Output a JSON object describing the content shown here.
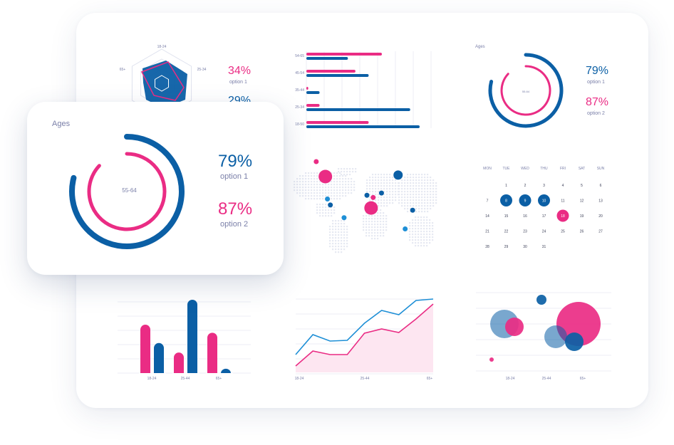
{
  "colors": {
    "blue": "#0b5fa5",
    "pink": "#ea2c84",
    "lightblue": "#1e8fd6",
    "muted": "#7a7fa8",
    "grid": "#eceef5"
  },
  "overlay_card": {
    "title": "Ages",
    "center_label": "55-64",
    "pct1": "79%",
    "opt1": "option 1",
    "pct2": "87%",
    "opt2": "option 2"
  },
  "radar_card": {
    "labels": [
      "18-24",
      "25-34",
      "65+"
    ],
    "pct1": "34%",
    "opt1": "option 1",
    "pct2": "29%"
  },
  "chart_data": [
    {
      "type": "bar",
      "orientation": "horizontal",
      "categories": [
        "54-65",
        "45-54",
        "35-44",
        "25-34",
        "18-50"
      ],
      "series": [
        {
          "values": [
            40,
            26,
            1,
            7,
            33
          ]
        },
        {
          "values": [
            22,
            33,
            7,
            55,
            60
          ]
        }
      ]
    },
    {
      "type": "pie",
      "subtype": "radial",
      "title": "Ages",
      "center_label": "55-64",
      "series": [
        {
          "name": "option 1",
          "value": 79
        },
        {
          "name": "option 2",
          "value": 87
        }
      ]
    },
    {
      "type": "scatter",
      "subtype": "map",
      "points": [
        {
          "lon": -100,
          "lat": 40,
          "size": 3,
          "color": "pink"
        },
        {
          "lon": -95,
          "lat": 10,
          "size": 1,
          "color": "lightblue"
        },
        {
          "lon": -88,
          "lat": 2,
          "size": 1,
          "color": "blue"
        },
        {
          "lon": -122,
          "lat": 60,
          "size": 1,
          "color": "pink"
        },
        {
          "lon": -55,
          "lat": -15,
          "size": 1,
          "color": "lightblue"
        },
        {
          "lon": 0,
          "lat": 15,
          "size": 1,
          "color": "blue"
        },
        {
          "lon": 10,
          "lat": -2,
          "size": 3,
          "color": "pink"
        },
        {
          "lon": 15,
          "lat": 12,
          "size": 1,
          "color": "pink"
        },
        {
          "lon": 35,
          "lat": 18,
          "size": 1,
          "color": "blue"
        },
        {
          "lon": 75,
          "lat": 42,
          "size": 2,
          "color": "blue"
        },
        {
          "lon": 110,
          "lat": -5,
          "size": 1,
          "color": "blue"
        },
        {
          "lon": 92,
          "lat": -30,
          "size": 1,
          "color": "lightblue"
        }
      ]
    },
    {
      "type": "table",
      "subtype": "calendar",
      "columns": [
        "MON",
        "TUE",
        "WED",
        "THU",
        "FRI",
        "SAT",
        "SUN"
      ],
      "first_weekday_index": 1,
      "days": 31,
      "highlighted_blue": [
        8,
        9,
        10
      ],
      "highlighted_pink": [
        18
      ]
    },
    {
      "type": "bar",
      "categories": [
        "18-24",
        "25-44",
        "65+"
      ],
      "series": [
        {
          "values": [
            66,
            28,
            55
          ]
        },
        {
          "values": [
            41,
            100,
            6
          ]
        }
      ]
    },
    {
      "type": "area",
      "x_ticks": [
        "18-24",
        "25-44",
        "65+"
      ],
      "series": [
        {
          "values": [
            24,
            52,
            43,
            44,
            68,
            86,
            80,
            100,
            102
          ]
        },
        {
          "values": [
            8,
            29,
            24,
            24,
            54,
            60,
            55,
            74,
            95
          ]
        }
      ]
    },
    {
      "type": "scatter",
      "subtype": "bubble",
      "x_ticks": [
        "18-24",
        "25-44",
        "65+"
      ],
      "points": [
        {
          "x": 1.0,
          "y": 62,
          "r": 20,
          "color": "blue"
        },
        {
          "x": 1.35,
          "y": 58,
          "r": 13,
          "color": "pink"
        },
        {
          "x": 2.3,
          "y": 96,
          "r": 7,
          "color": "blue"
        },
        {
          "x": 3.6,
          "y": 62,
          "r": 31,
          "color": "pink"
        },
        {
          "x": 2.8,
          "y": 44,
          "r": 16,
          "color": "blue"
        },
        {
          "x": 3.45,
          "y": 37,
          "r": 13,
          "color": "blue"
        },
        {
          "x": 0.55,
          "y": 12,
          "r": 3,
          "color": "pink"
        }
      ]
    }
  ]
}
